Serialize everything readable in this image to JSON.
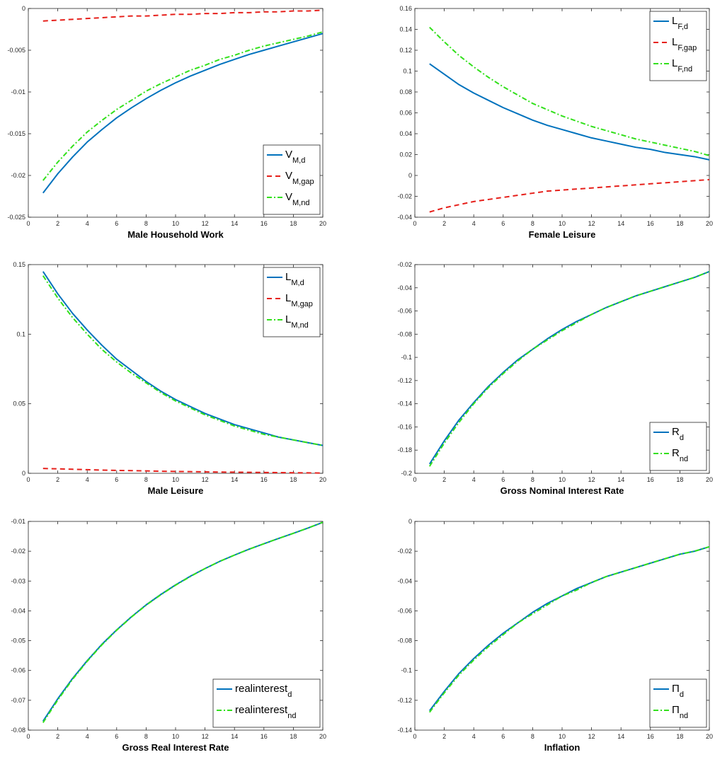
{
  "colors": {
    "d": "#0072BD",
    "gap": "#E6201B",
    "nd": "#33E01C",
    "axis": "#262626"
  },
  "chart_data": [
    {
      "type": "line",
      "xlabel": "Male Household Work",
      "xlim": [
        0,
        20
      ],
      "ylim": [
        -0.025,
        0
      ],
      "xticks": [
        "0",
        "2",
        "4",
        "6",
        "8",
        "10",
        "12",
        "14",
        "16",
        "18",
        "20"
      ],
      "yticks": [
        "-0.025",
        "-0.02",
        "-0.015",
        "-0.01",
        "-0.005",
        "0"
      ],
      "legend_position": "bottom-right",
      "x": [
        1,
        2,
        3,
        4,
        5,
        6,
        7,
        8,
        9,
        10,
        11,
        12,
        13,
        14,
        15,
        16,
        17,
        18,
        19,
        20
      ],
      "series": [
        {
          "name": "V",
          "sub": "M,d",
          "key": "d",
          "values": [
            -0.0221,
            -0.0198,
            -0.0178,
            -0.016,
            -0.0145,
            -0.0131,
            -0.0119,
            -0.0108,
            -0.0098,
            -0.0089,
            -0.0081,
            -0.0074,
            -0.0067,
            -0.0061,
            -0.0055,
            -0.005,
            -0.0045,
            -0.004,
            -0.0035,
            -0.003
          ]
        },
        {
          "name": "V",
          "sub": "M,gap",
          "key": "gap",
          "values": [
            -0.0015,
            -0.0014,
            -0.0013,
            -0.0012,
            -0.0011,
            -0.001,
            -0.0009,
            -0.0009,
            -0.0008,
            -0.0007,
            -0.0007,
            -0.0006,
            -0.0006,
            -0.0005,
            -0.0005,
            -0.0004,
            -0.0004,
            -0.0003,
            -0.0003,
            -0.0002
          ]
        },
        {
          "name": "V",
          "sub": "M,nd",
          "key": "nd",
          "values": [
            -0.0206,
            -0.0184,
            -0.0165,
            -0.0148,
            -0.0134,
            -0.0121,
            -0.011,
            -0.0099,
            -0.009,
            -0.0082,
            -0.0074,
            -0.0068,
            -0.0061,
            -0.0056,
            -0.005,
            -0.0045,
            -0.0041,
            -0.0037,
            -0.0033,
            -0.0028
          ]
        }
      ]
    },
    {
      "type": "line",
      "xlabel": "Female Leisure",
      "xlim": [
        0,
        20
      ],
      "ylim": [
        -0.04,
        0.16
      ],
      "xticks": [
        "0",
        "2",
        "4",
        "6",
        "8",
        "10",
        "12",
        "14",
        "16",
        "18",
        "20"
      ],
      "yticks": [
        "-0.04",
        "-0.02",
        "0",
        "0.02",
        "0.04",
        "0.06",
        "0.08",
        "0.1",
        "0.12",
        "0.14",
        "0.16"
      ],
      "legend_position": "top-right",
      "x": [
        1,
        2,
        3,
        4,
        5,
        6,
        7,
        8,
        9,
        10,
        11,
        12,
        13,
        14,
        15,
        16,
        17,
        18,
        19,
        20
      ],
      "series": [
        {
          "name": "L",
          "sub": "F,d",
          "key": "d",
          "values": [
            0.107,
            0.097,
            0.087,
            0.079,
            0.072,
            0.065,
            0.059,
            0.053,
            0.048,
            0.044,
            0.04,
            0.036,
            0.033,
            0.03,
            0.027,
            0.025,
            0.022,
            0.02,
            0.018,
            0.015
          ]
        },
        {
          "name": "L",
          "sub": "F,gap",
          "key": "gap",
          "values": [
            -0.035,
            -0.031,
            -0.028,
            -0.025,
            -0.023,
            -0.021,
            -0.019,
            -0.017,
            -0.015,
            -0.014,
            -0.013,
            -0.012,
            -0.011,
            -0.01,
            -0.009,
            -0.008,
            -0.007,
            -0.006,
            -0.005,
            -0.004
          ]
        },
        {
          "name": "L",
          "sub": "F,nd",
          "key": "nd",
          "values": [
            0.142,
            0.128,
            0.115,
            0.104,
            0.094,
            0.085,
            0.077,
            0.069,
            0.063,
            0.057,
            0.052,
            0.047,
            0.043,
            0.039,
            0.035,
            0.032,
            0.029,
            0.026,
            0.023,
            0.019
          ]
        }
      ]
    },
    {
      "type": "line",
      "xlabel": "Male Leisure",
      "xlim": [
        0,
        20
      ],
      "ylim": [
        0,
        0.15
      ],
      "xticks": [
        "0",
        "2",
        "4",
        "6",
        "8",
        "10",
        "12",
        "14",
        "16",
        "18",
        "20"
      ],
      "yticks": [
        "0",
        "0.05",
        "0.1",
        "0.15"
      ],
      "legend_position": "top-right",
      "x": [
        1,
        2,
        3,
        4,
        5,
        6,
        7,
        8,
        9,
        10,
        11,
        12,
        13,
        14,
        15,
        16,
        17,
        18,
        19,
        20
      ],
      "series": [
        {
          "name": "L",
          "sub": "M,d",
          "key": "d",
          "values": [
            0.145,
            0.129,
            0.115,
            0.103,
            0.092,
            0.082,
            0.074,
            0.066,
            0.059,
            0.053,
            0.048,
            0.043,
            0.039,
            0.035,
            0.032,
            0.029,
            0.026,
            0.024,
            0.022,
            0.02
          ]
        },
        {
          "name": "L",
          "sub": "M,gap",
          "key": "gap",
          "values": [
            0.0035,
            0.0032,
            0.0029,
            0.0026,
            0.0023,
            0.0021,
            0.0019,
            0.0017,
            0.0015,
            0.0013,
            0.0012,
            0.001,
            0.0009,
            0.0008,
            0.0007,
            0.0006,
            0.0005,
            0.0004,
            0.0003,
            0.0002
          ]
        },
        {
          "name": "L",
          "sub": "M,nd",
          "key": "nd",
          "values": [
            0.142,
            0.126,
            0.112,
            0.1,
            0.089,
            0.08,
            0.072,
            0.065,
            0.058,
            0.052,
            0.047,
            0.042,
            0.038,
            0.034,
            0.031,
            0.028,
            0.026,
            0.024,
            0.022,
            0.02
          ]
        }
      ]
    },
    {
      "type": "line",
      "xlabel": "Gross Nominal Interest Rate",
      "xlim": [
        0,
        20
      ],
      "ylim": [
        -0.2,
        -0.02
      ],
      "xticks": [
        "0",
        "2",
        "4",
        "6",
        "8",
        "10",
        "12",
        "14",
        "16",
        "18",
        "20"
      ],
      "yticks": [
        "-0.2",
        "-0.18",
        "-0.16",
        "-0.14",
        "-0.12",
        "-0.1",
        "-0.08",
        "-0.06",
        "-0.04",
        "-0.02"
      ],
      "legend_position": "bottom-right",
      "x": [
        1,
        2,
        3,
        4,
        5,
        6,
        7,
        8,
        9,
        10,
        11,
        12,
        13,
        14,
        15,
        16,
        17,
        18,
        19,
        20
      ],
      "series": [
        {
          "name": "R",
          "sub": "d",
          "key": "d",
          "values": [
            -0.192,
            -0.172,
            -0.154,
            -0.139,
            -0.125,
            -0.113,
            -0.102,
            -0.093,
            -0.084,
            -0.076,
            -0.069,
            -0.063,
            -0.057,
            -0.052,
            -0.047,
            -0.043,
            -0.039,
            -0.035,
            -0.031,
            -0.026
          ]
        },
        {
          "name": "R",
          "sub": "nd",
          "key": "nd",
          "values": [
            -0.194,
            -0.174,
            -0.156,
            -0.14,
            -0.126,
            -0.114,
            -0.103,
            -0.093,
            -0.085,
            -0.077,
            -0.07,
            -0.063,
            -0.057,
            -0.052,
            -0.047,
            -0.043,
            -0.039,
            -0.035,
            -0.031,
            -0.026
          ]
        }
      ]
    },
    {
      "type": "line",
      "xlabel": "Gross Real Interest Rate",
      "xlim": [
        0,
        20
      ],
      "ylim": [
        -0.08,
        -0.01
      ],
      "xticks": [
        "0",
        "2",
        "4",
        "6",
        "8",
        "10",
        "12",
        "14",
        "16",
        "18",
        "20"
      ],
      "yticks": [
        "-0.08",
        "-0.07",
        "-0.06",
        "-0.05",
        "-0.04",
        "-0.03",
        "-0.02",
        "-0.01"
      ],
      "legend_position": "bottom-right",
      "x": [
        1,
        2,
        3,
        4,
        5,
        6,
        7,
        8,
        9,
        10,
        11,
        12,
        13,
        14,
        15,
        16,
        17,
        18,
        19,
        20
      ],
      "series": [
        {
          "name": "realinterest",
          "sub": "d",
          "key": "d",
          "values": [
            -0.077,
            -0.0695,
            -0.0627,
            -0.0567,
            -0.0512,
            -0.0464,
            -0.042,
            -0.038,
            -0.0345,
            -0.0313,
            -0.0284,
            -0.0258,
            -0.0234,
            -0.0213,
            -0.0193,
            -0.0175,
            -0.0157,
            -0.014,
            -0.0122,
            -0.0103
          ]
        },
        {
          "name": "realinterest",
          "sub": "nd",
          "key": "nd",
          "values": [
            -0.0775,
            -0.0699,
            -0.063,
            -0.0569,
            -0.0514,
            -0.0465,
            -0.0421,
            -0.0381,
            -0.0346,
            -0.0314,
            -0.0285,
            -0.0258,
            -0.0234,
            -0.0213,
            -0.0193,
            -0.0175,
            -0.0157,
            -0.014,
            -0.0122,
            -0.0103
          ]
        }
      ]
    },
    {
      "type": "line",
      "xlabel": "Inflation",
      "xlim": [
        0,
        20
      ],
      "ylim": [
        -0.14,
        0
      ],
      "xticks": [
        "0",
        "2",
        "4",
        "6",
        "8",
        "10",
        "12",
        "14",
        "16",
        "18",
        "20"
      ],
      "yticks": [
        "-0.14",
        "-0.12",
        "-0.1",
        "-0.08",
        "-0.06",
        "-0.04",
        "-0.02",
        "0"
      ],
      "legend_position": "bottom-right",
      "x": [
        1,
        2,
        3,
        4,
        5,
        6,
        7,
        8,
        9,
        10,
        11,
        12,
        13,
        14,
        15,
        16,
        17,
        18,
        19,
        20
      ],
      "series": [
        {
          "name": "Π",
          "sub": "d",
          "key": "d",
          "values": [
            -0.127,
            -0.114,
            -0.102,
            -0.092,
            -0.083,
            -0.075,
            -0.068,
            -0.061,
            -0.055,
            -0.05,
            -0.045,
            -0.041,
            -0.037,
            -0.034,
            -0.031,
            -0.028,
            -0.025,
            -0.022,
            -0.02,
            -0.017
          ]
        },
        {
          "name": "Π",
          "sub": "nd",
          "key": "nd",
          "values": [
            -0.128,
            -0.115,
            -0.103,
            -0.093,
            -0.084,
            -0.076,
            -0.068,
            -0.062,
            -0.056,
            -0.05,
            -0.046,
            -0.041,
            -0.037,
            -0.034,
            -0.031,
            -0.028,
            -0.025,
            -0.022,
            -0.02,
            -0.017
          ]
        }
      ]
    }
  ]
}
